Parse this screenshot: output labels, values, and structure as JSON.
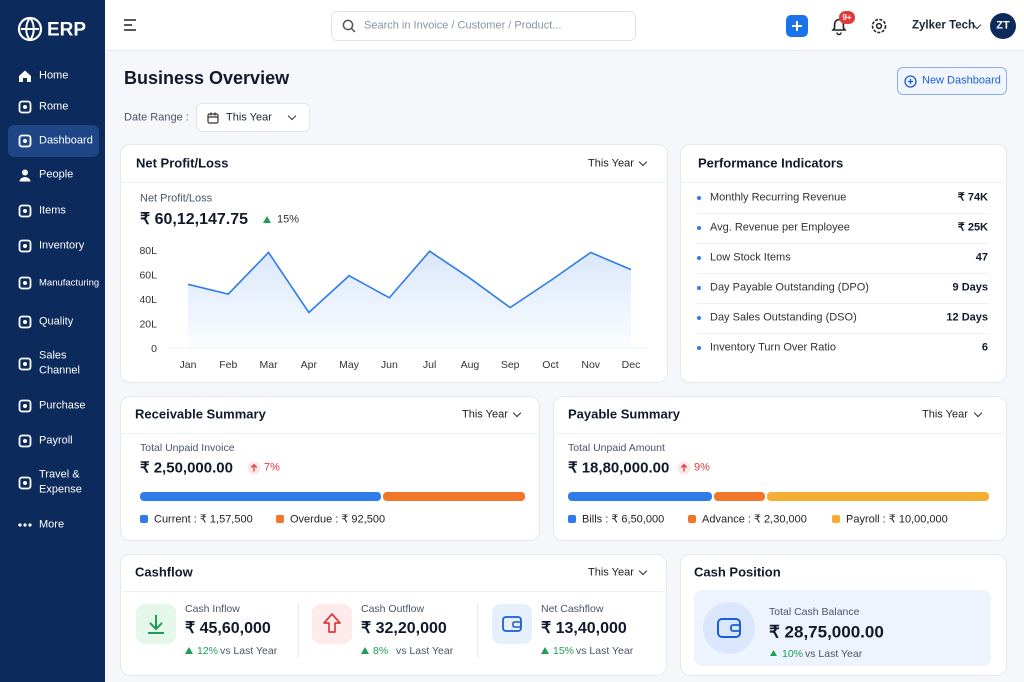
{
  "sidebar": {
    "logo": "ERP",
    "items": [
      "Home",
      "Rome",
      "Dashboard",
      "People",
      "Items",
      "Inventory",
      "Manufacturing",
      "Quality",
      "Sales Channel",
      "Purchase",
      "Payroll",
      "Travel & Expense",
      "More"
    ],
    "active": 2
  },
  "topbar": {
    "search_placeholder": "Search in Invoice / Customer / Product...",
    "notification_badge": "9+",
    "user": "Zylker Tech",
    "avatar": "ZT"
  },
  "header": {
    "title": "Business Overview",
    "button": "New Dashboard",
    "date_range_label": "Date Range :",
    "date_range": "This Year"
  },
  "profit": {
    "title": "Net Profit/Loss",
    "filter": "This Year",
    "label": "Net Profit/Loss",
    "amount": "₹ 60,12,147.75",
    "change": "15%"
  },
  "chart_data": {
    "type": "line",
    "categories": [
      "Jan",
      "Feb",
      "Mar",
      "Apr",
      "May",
      "Jun",
      "Jul",
      "Aug",
      "Sep",
      "Oct",
      "Nov",
      "Dec"
    ],
    "values": [
      52,
      44,
      78,
      29,
      59,
      41,
      79,
      57,
      33,
      55,
      78,
      64
    ],
    "color": "#2f7be9",
    "ylim": [
      0,
      80
    ],
    "yticks": [
      0,
      {
        "value": 20,
        "label": "20L"
      },
      {
        "value": 40,
        "label": "40L"
      },
      {
        "value": 60,
        "label": "60L"
      },
      {
        "value": 80,
        "label": "80L"
      }
    ]
  },
  "performance": {
    "title": "Performance Indicators",
    "items": [
      {
        "label": "Monthly Recurring Revenue",
        "value": "₹ 74K"
      },
      {
        "label": "Avg. Revenue per Employee",
        "value": "₹ 25K"
      },
      {
        "label": "Low Stock Items",
        "value": "47"
      },
      {
        "label": "Day Payable Outstanding (DPO)",
        "value": "9 Days"
      },
      {
        "label": "Day Sales Outstanding (DSO)",
        "value": "12 Days"
      },
      {
        "label": "Inventory Turn Over Ratio",
        "value": "6"
      }
    ]
  },
  "receivable": {
    "title": "Receivable Summary",
    "filter": "This Year",
    "label": "Total Unpaid Invoice",
    "amount": "₹ 2,50,000.00",
    "change": "7%",
    "segments": [
      {
        "legend": "Current : ₹ 1,57,500",
        "value": 157500,
        "color": "#2f7be9"
      },
      {
        "legend": "Overdue : ₹ 92,500",
        "value": 92500,
        "color": "#f2762a"
      }
    ]
  },
  "payable": {
    "title": "Payable Summary",
    "filter": "This Year",
    "label": "Total Unpaid Amount",
    "amount": "₹ 18,80,000.00",
    "change": "9%",
    "segments": [
      {
        "legend": "Bills : ₹ 6,50,000",
        "value": 650000,
        "color": "#2f7be9"
      },
      {
        "legend": "Advance : ₹ 2,30,000",
        "value": 230000,
        "color": "#f2762a"
      },
      {
        "legend": "Payroll : ₹ 10,00,000",
        "value": 1000000,
        "color": "#f6ad33"
      }
    ]
  },
  "cashflow": {
    "title": "Cashflow",
    "filter": "This Year",
    "items": [
      {
        "label": "Cash Inflow",
        "amount": "₹ 45,60,000",
        "change": "12%",
        "note": "vs Last Year"
      },
      {
        "label": "Cash Outflow",
        "amount": "₹ 32,20,000",
        "change": "8%",
        "note": "vs Last Year"
      },
      {
        "label": "Net Cashflow",
        "amount": "₹ 13,40,000",
        "change": "15%",
        "note": "vs Last Year"
      }
    ]
  },
  "cash_position": {
    "title": "Cash Position",
    "label": "Total Cash Balance",
    "amount": "₹ 28,75,000.00",
    "change": "10%",
    "note": "vs Last Year"
  }
}
